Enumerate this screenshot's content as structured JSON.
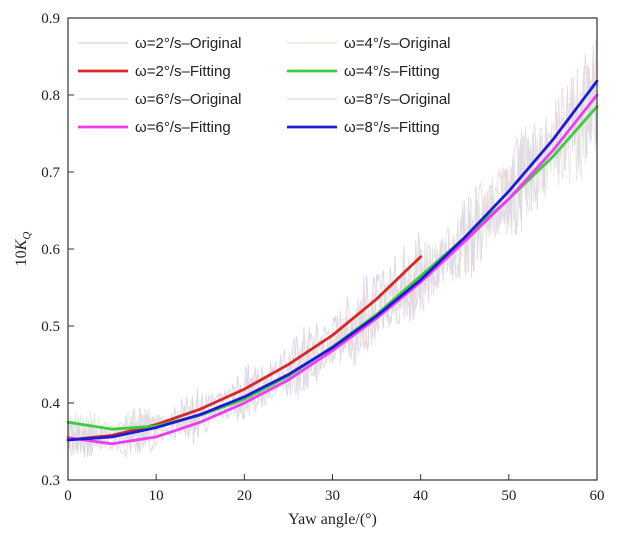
{
  "chart_data": {
    "type": "line",
    "title": "",
    "xlabel": "Yaw angle/(°)",
    "ylabel_prefix": "10",
    "ylabel_var": "K",
    "ylabel_sub": "Q",
    "xlim": [
      0,
      60
    ],
    "ylim": [
      0.3,
      0.9
    ],
    "xticks": [
      "0",
      "10",
      "20",
      "30",
      "40",
      "50",
      "60"
    ],
    "yticks": [
      "0.3",
      "0.4",
      "0.5",
      "0.6",
      "0.7",
      "0.8",
      "0.9"
    ],
    "grid": false,
    "legend_position": "top-left",
    "series": [
      {
        "name": "ω=2°/s–Original",
        "color": "#d9cde0",
        "style": "noisy",
        "x": [
          0,
          5,
          10,
          15,
          20,
          25,
          30,
          35,
          40
        ],
        "values": [
          0.356,
          0.36,
          0.374,
          0.395,
          0.42,
          0.455,
          0.495,
          0.54,
          0.59
        ]
      },
      {
        "name": "ω=4°/s–Original",
        "color": "#dfe8d6",
        "style": "noisy",
        "x": [
          0,
          5,
          10,
          15,
          20,
          25,
          30,
          35,
          40,
          45,
          50,
          55,
          60
        ],
        "values": [
          0.375,
          0.366,
          0.37,
          0.384,
          0.405,
          0.435,
          0.473,
          0.515,
          0.565,
          0.615,
          0.665,
          0.72,
          0.785
        ]
      },
      {
        "name": "ω=2°/s–Fitting",
        "color": "#d62828",
        "style": "line",
        "x": [
          0,
          5,
          10,
          15,
          20,
          25,
          30,
          35,
          40
        ],
        "values": [
          0.352,
          0.358,
          0.372,
          0.392,
          0.418,
          0.45,
          0.488,
          0.535,
          0.59
        ]
      },
      {
        "name": "ω=4°/s–Fitting",
        "color": "#3ccc3c",
        "style": "line",
        "x": [
          0,
          5,
          10,
          15,
          20,
          25,
          30,
          35,
          40,
          45,
          50,
          55,
          60
        ],
        "values": [
          0.375,
          0.366,
          0.37,
          0.384,
          0.405,
          0.435,
          0.473,
          0.515,
          0.565,
          0.615,
          0.665,
          0.72,
          0.785
        ]
      },
      {
        "name": "ω=6°/s–Original",
        "color": "#d7d3e6",
        "style": "noisy",
        "x": [
          0,
          5,
          10,
          15,
          20,
          25,
          30,
          35,
          40,
          45,
          50,
          55,
          60
        ],
        "values": [
          0.355,
          0.347,
          0.356,
          0.375,
          0.4,
          0.43,
          0.468,
          0.51,
          0.557,
          0.61,
          0.665,
          0.728,
          0.8
        ]
      },
      {
        "name": "ω=8°/s–Original",
        "color": "#e8d6dd",
        "style": "noisy",
        "x": [
          0,
          5,
          10,
          15,
          20,
          25,
          30,
          35,
          40,
          45,
          50,
          55,
          60
        ],
        "values": [
          0.352,
          0.356,
          0.368,
          0.385,
          0.408,
          0.437,
          0.472,
          0.513,
          0.56,
          0.615,
          0.675,
          0.742,
          0.818
        ]
      },
      {
        "name": "ω=6°/s–Fitting",
        "color": "#f03cf0",
        "style": "line",
        "x": [
          0,
          5,
          10,
          15,
          20,
          25,
          30,
          35,
          40,
          45,
          50,
          55,
          60
        ],
        "values": [
          0.355,
          0.347,
          0.356,
          0.375,
          0.4,
          0.43,
          0.468,
          0.51,
          0.557,
          0.61,
          0.665,
          0.728,
          0.8
        ]
      },
      {
        "name": "ω=8°/s–Fitting",
        "color": "#1c1cd6",
        "style": "line",
        "x": [
          0,
          5,
          10,
          15,
          20,
          25,
          30,
          35,
          40,
          45,
          50,
          55,
          60
        ],
        "values": [
          0.352,
          0.356,
          0.368,
          0.385,
          0.408,
          0.437,
          0.472,
          0.513,
          0.56,
          0.615,
          0.675,
          0.742,
          0.818
        ]
      }
    ]
  }
}
